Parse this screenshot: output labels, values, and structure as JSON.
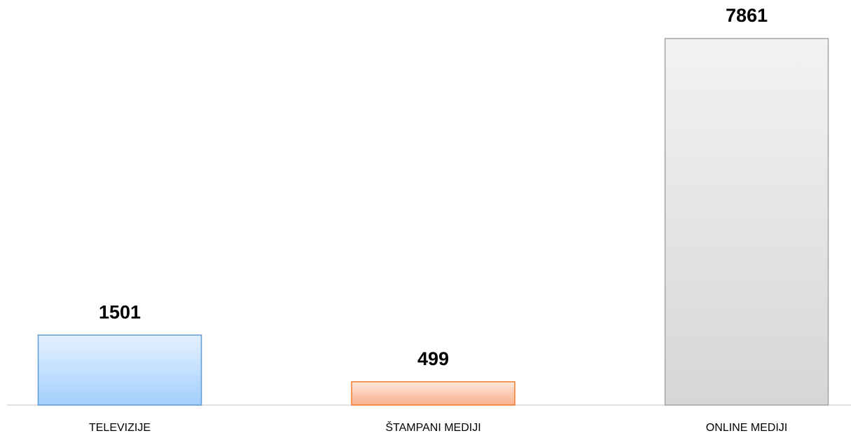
{
  "chart_data": {
    "type": "bar",
    "categories": [
      "TELEVIZIJE",
      "ŠTAMPANI MEDIJI",
      "ONLINE MEDIJI"
    ],
    "values": [
      1501,
      499,
      7861
    ],
    "colors": [
      "#a3cffd",
      "#f9b08a",
      "#d6d6d6"
    ],
    "edge_colors": [
      "#5b9bd5",
      "#ed7d31",
      "#a5a5a5"
    ]
  }
}
